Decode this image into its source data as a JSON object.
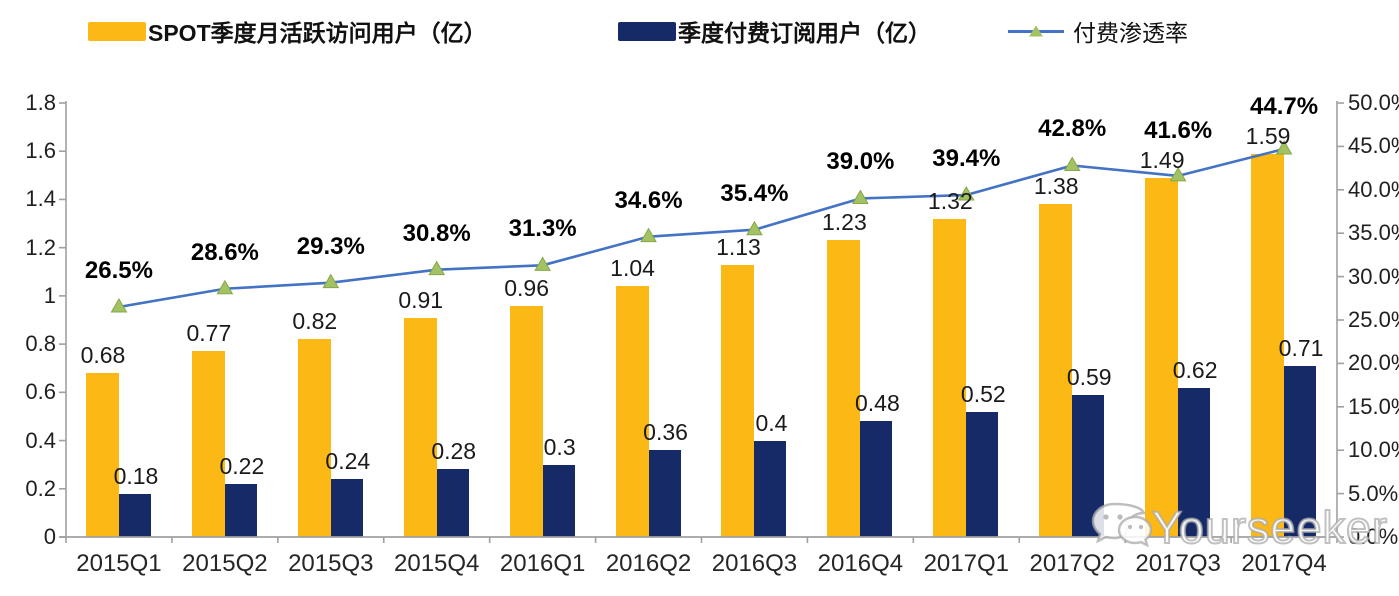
{
  "legend": [
    {
      "label": "SPOT季度月活跃访问用户（亿）",
      "swatch": "bar",
      "color": "#FCB815",
      "bold": true
    },
    {
      "label": "季度付费订阅用户（亿）",
      "swatch": "bar",
      "color": "#172A68",
      "bold": true
    },
    {
      "label": "付费渗透率",
      "swatch": "line",
      "color": "#4472C4",
      "marker_color": "#A2C263",
      "bold": false
    }
  ],
  "chart_data": {
    "type": "bar+line combo",
    "categories": [
      "2015Q1",
      "2015Q2",
      "2015Q3",
      "2015Q4",
      "2016Q1",
      "2016Q2",
      "2016Q3",
      "2016Q4",
      "2017Q1",
      "2017Q2",
      "2017Q3",
      "2017Q4"
    ],
    "series": [
      {
        "name": "SPOT季度月活跃访问用户（亿）",
        "type": "bar",
        "axis": "left",
        "color": "#FCB815",
        "values": [
          0.68,
          0.77,
          0.82,
          0.91,
          0.96,
          1.04,
          1.13,
          1.23,
          1.32,
          1.38,
          1.49,
          1.59
        ],
        "labels": [
          "0.68",
          "0.77",
          "0.82",
          "0.91",
          "0.96",
          "1.04",
          "1.13",
          "1.23",
          "1.32",
          "1.38",
          "1.49",
          "1.59"
        ]
      },
      {
        "name": "季度付费订阅用户（亿）",
        "type": "bar",
        "axis": "left",
        "color": "#172A68",
        "values": [
          0.18,
          0.22,
          0.24,
          0.28,
          0.3,
          0.36,
          0.4,
          0.48,
          0.52,
          0.59,
          0.62,
          0.71
        ],
        "labels": [
          "0.18",
          "0.22",
          "0.24",
          "0.28",
          "0.3",
          "0.36",
          "0.4",
          "0.48",
          "0.52",
          "0.59",
          "0.62",
          "0.71"
        ]
      },
      {
        "name": "付费渗透率",
        "type": "line",
        "axis": "right",
        "color": "#4472C4",
        "marker": "triangle-up",
        "marker_color": "#A2C263",
        "marker_stroke": "#86A84A",
        "values": [
          26.5,
          28.6,
          29.3,
          30.8,
          31.3,
          34.6,
          35.4,
          39.0,
          39.4,
          42.8,
          41.6,
          44.7
        ],
        "labels": [
          "26.5%",
          "28.6%",
          "29.3%",
          "30.8%",
          "31.3%",
          "34.6%",
          "35.4%",
          "39.0%",
          "39.4%",
          "42.8%",
          "41.6%",
          "44.7%"
        ]
      }
    ],
    "left_axis": {
      "min": 0,
      "max": 1.8,
      "step": 0.2,
      "ticks": [
        "1.8",
        "1.6",
        "1.4",
        "1.2",
        "1",
        "0.8",
        "0.6",
        "0.4",
        "0.2",
        "0"
      ]
    },
    "right_axis": {
      "min": 0,
      "max": 50,
      "step": 5,
      "ticks": [
        "50.0%",
        "45.0%",
        "40.0%",
        "35.0%",
        "30.0%",
        "25.0%",
        "20.0%",
        "15.0%",
        "10.0%",
        "5.0%",
        "0.0%"
      ]
    },
    "grid": "off",
    "legend_position": "top",
    "axis_color": "#A0A0A0"
  },
  "watermark": {
    "text": "Yourseeker",
    "icon": "wechat-icon"
  }
}
